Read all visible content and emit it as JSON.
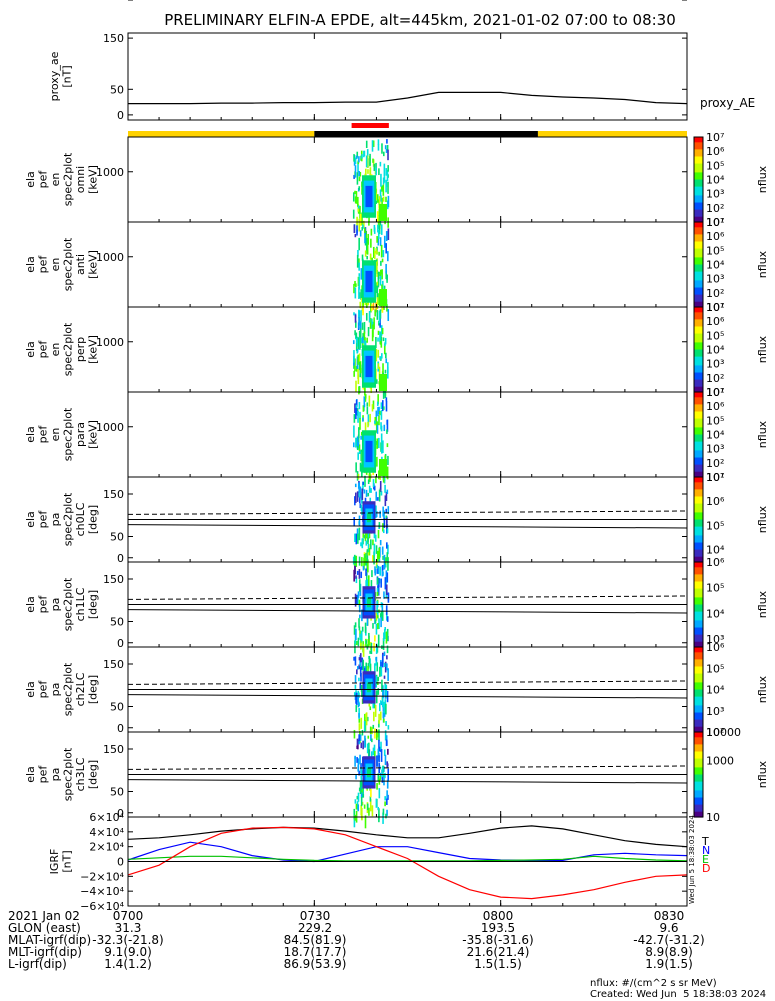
{
  "title": "PRELIMINARY ELFIN-A EPDE, alt=445km, 2021-01-02 07:00 to 08:30",
  "colors": {
    "ae_line": "#000000",
    "sunlight_bar": "#ffd200",
    "shadow_bar": "#000000",
    "science_bar": "#ff0000",
    "igrf_T": "#000000",
    "igrf_N": "#0000ff",
    "igrf_E": "#00c000",
    "igrf_D": "#ff0000"
  },
  "chart_data": {
    "type": "heatmap",
    "time_range": [
      "07:00",
      "08:30"
    ],
    "time_ticks": [
      "0700",
      "0730",
      "0800",
      "0830"
    ],
    "panels": [
      {
        "id": "proxy_ae",
        "type": "line",
        "ylabel": [
          "proxy_ae",
          "[nT]"
        ],
        "yticks": [
          "150",
          "100",
          "50",
          "0"
        ],
        "ylim": [
          -10,
          160
        ],
        "legend": "proxy_AE",
        "x_minutes": [
          0,
          5,
          10,
          15,
          20,
          25,
          30,
          35,
          40,
          45,
          50,
          55,
          60,
          65,
          70,
          75,
          80,
          85,
          90
        ],
        "values": [
          22,
          22,
          22,
          23,
          23,
          24,
          24,
          25,
          25,
          33,
          44,
          44,
          44,
          38,
          35,
          33,
          30,
          24,
          22
        ]
      },
      {
        "id": "en_omni",
        "type": "spectrogram",
        "ylabel": [
          "ela",
          "pef",
          "en",
          "spec2plot",
          "omni",
          "[keV]"
        ],
        "yticks": [
          "1000",
          "100"
        ],
        "yscale": "log",
        "ylim": [
          60,
          7000
        ],
        "colorbar": {
          "ticks": [
            "10⁷",
            "10⁶",
            "10⁵",
            "10⁴",
            "10³",
            "10²",
            "10¹"
          ],
          "label": "nflux",
          "range": [
            10,
            10000000
          ]
        }
      },
      {
        "id": "en_anti",
        "type": "spectrogram",
        "ylabel": [
          "ela",
          "pef",
          "en",
          "spec2plot",
          "anti",
          "[keV]"
        ],
        "yticks": [
          "1000",
          "100"
        ],
        "yscale": "log",
        "ylim": [
          60,
          7000
        ],
        "colorbar": {
          "ticks": [
            "10⁷",
            "10⁶",
            "10⁵",
            "10⁴",
            "10³",
            "10²",
            "10¹"
          ],
          "label": "nflux",
          "range": [
            10,
            10000000
          ]
        }
      },
      {
        "id": "en_perp",
        "type": "spectrogram",
        "ylabel": [
          "ela",
          "pef",
          "en",
          "spec2plot",
          "perp",
          "[keV]"
        ],
        "yticks": [
          "1000",
          "100"
        ],
        "yscale": "log",
        "ylim": [
          60,
          7000
        ],
        "colorbar": {
          "ticks": [
            "10⁷",
            "10⁶",
            "10⁵",
            "10⁴",
            "10³",
            "10²",
            "10¹"
          ],
          "label": "nflux",
          "range": [
            10,
            10000000
          ]
        }
      },
      {
        "id": "en_para",
        "type": "spectrogram",
        "ylabel": [
          "ela",
          "pef",
          "en",
          "spec2plot",
          "para",
          "[keV]"
        ],
        "yticks": [
          "1000",
          "100"
        ],
        "yscale": "log",
        "ylim": [
          60,
          7000
        ],
        "colorbar": {
          "ticks": [
            "10⁷",
            "10⁶",
            "10⁵",
            "10⁴",
            "10³",
            "10²",
            "10¹"
          ],
          "label": "nflux",
          "range": [
            10,
            10000000
          ]
        }
      },
      {
        "id": "pa_ch0LC",
        "type": "spectrogram",
        "ylabel": [
          "ela",
          "pef",
          "pa",
          "spec2plot",
          "ch0LC",
          "[deg]"
        ],
        "yticks": [
          "150",
          "100",
          "50",
          "0"
        ],
        "ylim": [
          -10,
          190
        ],
        "lc_line": [
          78,
          70
        ],
        "alc_line": [
          102,
          110
        ],
        "colorbar": {
          "ticks": [
            "10⁷",
            "10⁶",
            "10⁵",
            "10⁴"
          ],
          "label": "nflux",
          "range": [
            3000,
            10000000
          ]
        }
      },
      {
        "id": "pa_ch1LC",
        "type": "spectrogram",
        "ylabel": [
          "ela",
          "pef",
          "pa",
          "spec2plot",
          "ch1LC",
          "[deg]"
        ],
        "yticks": [
          "150",
          "100",
          "50",
          "0"
        ],
        "ylim": [
          -10,
          190
        ],
        "lc_line": [
          78,
          70
        ],
        "alc_line": [
          102,
          110
        ],
        "colorbar": {
          "ticks": [
            "10⁶",
            "10⁵",
            "10⁴",
            "10³"
          ],
          "label": "nflux",
          "range": [
            500,
            1000000
          ]
        }
      },
      {
        "id": "pa_ch2LC",
        "type": "spectrogram",
        "ylabel": [
          "ela",
          "pef",
          "pa",
          "spec2plot",
          "ch2LC",
          "[deg]"
        ],
        "yticks": [
          "150",
          "100",
          "50",
          "0"
        ],
        "ylim": [
          -10,
          190
        ],
        "lc_line": [
          78,
          70
        ],
        "alc_line": [
          102,
          110
        ],
        "colorbar": {
          "ticks": [
            "10⁶",
            "10⁵",
            "10⁴",
            "10³",
            "10²"
          ],
          "label": "nflux",
          "range": [
            100,
            1000000
          ]
        }
      },
      {
        "id": "pa_ch3LC",
        "type": "spectrogram",
        "ylabel": [
          "ela",
          "pef",
          "pa",
          "spec2plot",
          "ch3LC",
          "[deg]"
        ],
        "yticks": [
          "150",
          "100",
          "50",
          "0"
        ],
        "ylim": [
          -10,
          190
        ],
        "lc_line": [
          78,
          70
        ],
        "alc_line": [
          102,
          110
        ],
        "colorbar": {
          "ticks": [
            "10000",
            "1000",
            "100",
            "10"
          ],
          "label": "nflux",
          "range": [
            10,
            10000
          ]
        }
      },
      {
        "id": "igrf",
        "type": "line",
        "ylabel": [
          "IGRF",
          "[nT]"
        ],
        "yticks": [
          "6×10⁴",
          "4×10⁴",
          "2×10⁴",
          "0",
          "−2×10⁴",
          "−4×10⁴",
          "−6×10⁴"
        ],
        "ylim": [
          -60000,
          60000
        ],
        "legend": [
          "T",
          "N",
          "E",
          "D"
        ],
        "x_minutes": [
          0,
          5,
          10,
          15,
          20,
          25,
          30,
          35,
          40,
          45,
          50,
          55,
          60,
          65,
          70,
          75,
          80,
          85,
          90
        ],
        "series": [
          {
            "name": "T",
            "values": [
              30000,
              32000,
              36000,
              41000,
              44000,
              46000,
              45000,
              41000,
              36000,
              32000,
              32000,
              38000,
              45000,
              48000,
              44000,
              36000,
              28000,
              23000,
              20000
            ]
          },
          {
            "name": "N",
            "values": [
              2000,
              16000,
              26000,
              20000,
              8000,
              2000,
              0,
              10000,
              20000,
              20000,
              12000,
              4000,
              2000,
              1500,
              1500,
              9000,
              11000,
              9000,
              8000
            ]
          },
          {
            "name": "E",
            "values": [
              3000,
              5000,
              7000,
              7000,
              5000,
              3000,
              1500,
              1000,
              1000,
              1000,
              1000,
              1000,
              1500,
              2000,
              3000,
              7000,
              4000,
              2000,
              1000
            ]
          },
          {
            "name": "D",
            "values": [
              -18000,
              -5000,
              20000,
              38000,
              45000,
              46000,
              44000,
              36000,
              20000,
              4000,
              -20000,
              -38000,
              -48000,
              -50000,
              -45000,
              -38000,
              -28000,
              -20000,
              -18000
            ]
          }
        ]
      }
    ]
  },
  "orbit_bar": {
    "segments": [
      {
        "start_min": 0,
        "end_min": 30,
        "kind": "sunlight"
      },
      {
        "start_min": 30,
        "end_min": 66,
        "kind": "shadow"
      },
      {
        "start_min": 66,
        "end_min": 90,
        "kind": "sunlight"
      }
    ],
    "science_collection": {
      "start_min": 36,
      "end_min": 42
    }
  },
  "igrf_side_note": "Wed Jun 5 18:38:03 2024",
  "footer": {
    "rows": [
      {
        "label": "2021 Jan 02",
        "values": [
          "0700",
          "0730",
          "0800",
          "0830"
        ]
      },
      {
        "label": "GLON (east)",
        "values": [
          "31.3",
          "229.2",
          "193.5",
          "9.6"
        ]
      },
      {
        "label": "MLAT-igrf(dip)",
        "values": [
          "-32.3(-21.8)",
          "84.5(81.9)",
          "-35.8(-31.6)",
          "-42.7(-31.2)"
        ]
      },
      {
        "label": "MLT-igrf(dip)",
        "values": [
          "9.1(9.0)",
          "18.7(17.7)",
          "21.6(21.4)",
          "8.9(8.9)"
        ]
      },
      {
        "label": "L-igrf(dip)",
        "values": [
          "1.4(1.2)",
          "86.9(53.9)",
          "1.5(1.5)",
          "1.9(1.5)"
        ]
      }
    ],
    "units_note": "nflux: #/(cm^2 s sr MeV)",
    "created": "Created: Wed Jun  5 18:38:03 2024"
  }
}
